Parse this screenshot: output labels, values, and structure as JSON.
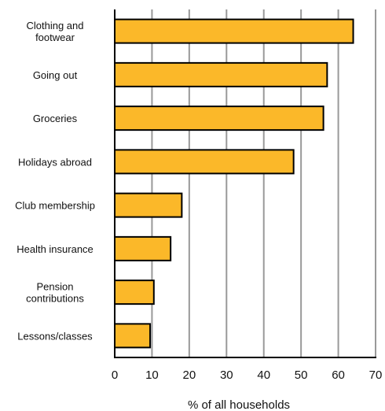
{
  "chart_data": {
    "type": "bar",
    "orientation": "horizontal",
    "categories": [
      [
        "Clothing and",
        "footwear"
      ],
      [
        "Going out"
      ],
      [
        "Groceries"
      ],
      [
        "Holidays abroad"
      ],
      [
        "Club membership"
      ],
      [
        "Health insurance"
      ],
      [
        "Pension",
        "contributions"
      ],
      [
        "Lessons/classes"
      ]
    ],
    "values": [
      64,
      57,
      56,
      48,
      18,
      15,
      10.5,
      9.5
    ],
    "xlabel": "% of all households",
    "xlim": [
      0,
      70
    ],
    "xticks": [
      0,
      10,
      20,
      30,
      40,
      50,
      60,
      70
    ],
    "grid": "vertical",
    "colors": {
      "bar": "#FBB829",
      "bar_edge": "#000000",
      "grid": "#999999",
      "axis": "#000000"
    }
  }
}
